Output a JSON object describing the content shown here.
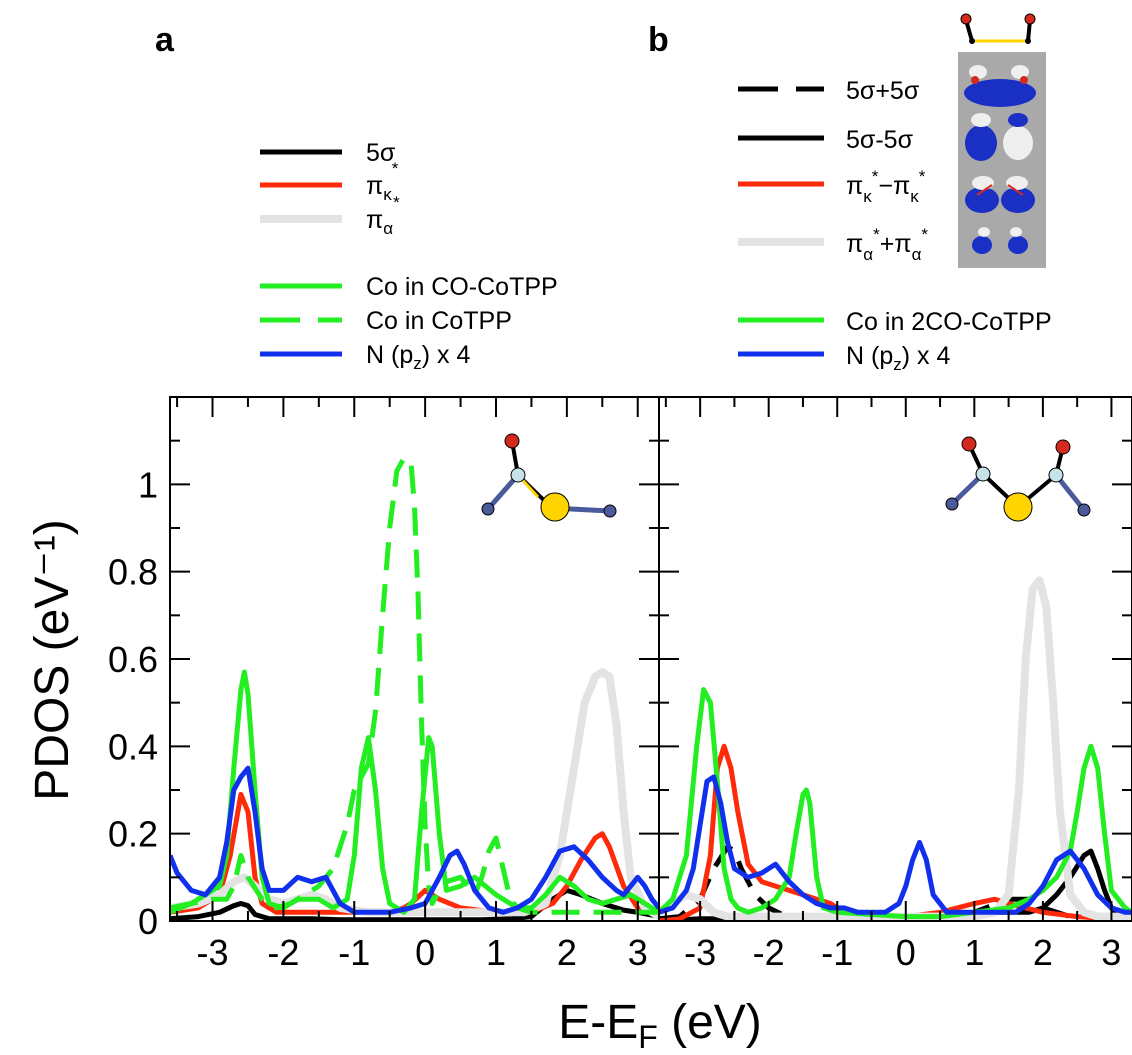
{
  "figure": {
    "ylabel": "PDOS (eV⁻¹)",
    "xlabel": "E-E_F (eV)"
  },
  "chart_data": [
    {
      "type": "line",
      "panel": "a",
      "ylabel": "PDOS (eV⁻¹)",
      "xlabel": "E-E_F (eV)",
      "xlim": [
        -3.6,
        3.3
      ],
      "ylim": [
        0,
        1.2
      ],
      "xticks": [
        -3,
        -2,
        -1,
        0,
        1,
        2,
        3
      ],
      "yticks": [
        0,
        0.2,
        0.4,
        0.6,
        0.8,
        1
      ],
      "series": [
        {
          "name": "5σ",
          "color": "#000000",
          "dash": "solid",
          "width": 5,
          "x": [
            -3.6,
            -3.2,
            -2.9,
            -2.7,
            -2.6,
            -2.5,
            -2.4,
            -2.2,
            -2.0,
            -1.6,
            -1.2,
            -0.8,
            -0.4,
            0.0,
            0.4,
            0.8,
            1.2,
            1.5,
            1.8,
            2.0,
            2.2,
            2.5,
            2.8,
            3.0,
            3.3
          ],
          "y": [
            0.005,
            0.01,
            0.02,
            0.035,
            0.04,
            0.035,
            0.015,
            0.005,
            0.005,
            0.005,
            0.003,
            0.003,
            0.003,
            0.003,
            0.003,
            0.003,
            0.005,
            0.01,
            0.05,
            0.07,
            0.06,
            0.04,
            0.025,
            0.02,
            0.01
          ]
        },
        {
          "name": "πκ*",
          "color": "#ff2a0a",
          "dash": "solid",
          "width": 5,
          "x": [
            -3.6,
            -3.2,
            -2.9,
            -2.75,
            -2.6,
            -2.5,
            -2.4,
            -2.3,
            -2.1,
            -1.9,
            -1.5,
            -1.0,
            -0.5,
            -0.3,
            -0.2,
            0.0,
            0.2,
            0.5,
            1.0,
            1.5,
            1.8,
            2.0,
            2.2,
            2.4,
            2.5,
            2.6,
            2.8,
            3.0,
            3.3
          ],
          "y": [
            0.02,
            0.03,
            0.06,
            0.15,
            0.29,
            0.25,
            0.1,
            0.04,
            0.02,
            0.02,
            0.02,
            0.02,
            0.02,
            0.03,
            0.04,
            0.07,
            0.05,
            0.03,
            0.02,
            0.02,
            0.04,
            0.08,
            0.14,
            0.19,
            0.2,
            0.17,
            0.08,
            0.03,
            0.01
          ]
        },
        {
          "name": "πα*",
          "color": "#e3e3e3",
          "dash": "solid",
          "width": 8,
          "x": [
            -3.6,
            -3.2,
            -2.9,
            -2.7,
            -2.55,
            -2.4,
            -2.2,
            -2.0,
            -1.8,
            -1.6,
            -1.4,
            -1.2,
            -1.0,
            -0.8,
            -0.6,
            -0.4,
            -0.2,
            0.0,
            0.3,
            0.6,
            1.0,
            1.4,
            1.7,
            1.9,
            2.1,
            2.25,
            2.4,
            2.5,
            2.6,
            2.7,
            2.8,
            2.9,
            3.1,
            3.3
          ],
          "y": [
            0.03,
            0.04,
            0.06,
            0.09,
            0.1,
            0.08,
            0.05,
            0.04,
            0.05,
            0.06,
            0.05,
            0.03,
            0.025,
            0.02,
            0.02,
            0.02,
            0.02,
            0.02,
            0.02,
            0.02,
            0.02,
            0.02,
            0.04,
            0.15,
            0.35,
            0.5,
            0.56,
            0.57,
            0.56,
            0.45,
            0.25,
            0.1,
            0.03,
            0.01
          ]
        },
        {
          "name": "Co in CO-CoTPP",
          "color": "#22ee22",
          "dash": "solid",
          "width": 5,
          "x": [
            -3.6,
            -3.3,
            -3.1,
            -2.9,
            -2.8,
            -2.7,
            -2.6,
            -2.55,
            -2.5,
            -2.4,
            -2.3,
            -2.2,
            -2.0,
            -1.8,
            -1.5,
            -1.3,
            -1.1,
            -1.0,
            -0.9,
            -0.8,
            -0.7,
            -0.6,
            -0.5,
            -0.3,
            -0.15,
            -0.05,
            0.05,
            0.1,
            0.2,
            0.3,
            0.5,
            0.7,
            1.0,
            1.3,
            1.5,
            1.7,
            1.9,
            2.1,
            2.3,
            2.5,
            2.7,
            2.9,
            3.1,
            3.3
          ],
          "y": [
            0.02,
            0.04,
            0.06,
            0.08,
            0.15,
            0.35,
            0.53,
            0.57,
            0.52,
            0.3,
            0.1,
            0.04,
            0.03,
            0.05,
            0.05,
            0.03,
            0.05,
            0.15,
            0.35,
            0.42,
            0.3,
            0.12,
            0.04,
            0.02,
            0.05,
            0.25,
            0.42,
            0.4,
            0.2,
            0.07,
            0.08,
            0.1,
            0.06,
            0.03,
            0.03,
            0.06,
            0.1,
            0.08,
            0.05,
            0.04,
            0.05,
            0.06,
            0.04,
            0.02
          ]
        },
        {
          "name": "Co in CoTPP",
          "color": "#22ee22",
          "dash": "dash",
          "width": 5,
          "x": [
            -3.6,
            -3.3,
            -3.0,
            -2.8,
            -2.7,
            -2.6,
            -2.5,
            -2.3,
            -2.1,
            -1.9,
            -1.7,
            -1.5,
            -1.3,
            -1.1,
            -1.0,
            -0.9,
            -0.8,
            -0.7,
            -0.6,
            -0.5,
            -0.4,
            -0.3,
            -0.2,
            -0.15,
            -0.1,
            -0.05,
            0.0,
            0.05,
            0.1,
            0.2,
            0.3,
            0.5,
            0.7,
            0.8,
            0.9,
            1.0,
            1.1,
            1.2,
            1.3,
            1.5,
            1.8,
            2.2,
            2.6,
            3.0,
            3.3
          ],
          "y": [
            0.03,
            0.04,
            0.05,
            0.05,
            0.08,
            0.15,
            0.1,
            0.05,
            0.03,
            0.04,
            0.06,
            0.08,
            0.12,
            0.22,
            0.3,
            0.33,
            0.36,
            0.48,
            0.7,
            0.9,
            1.03,
            1.06,
            1.05,
            0.95,
            0.75,
            0.45,
            0.22,
            0.08,
            0.04,
            0.07,
            0.09,
            0.1,
            0.06,
            0.1,
            0.16,
            0.19,
            0.12,
            0.05,
            0.03,
            0.02,
            0.02,
            0.02,
            0.02,
            0.02,
            0.02
          ]
        },
        {
          "name": "N (p_z) x 4",
          "color": "#1030ee",
          "dash": "solid",
          "width": 5,
          "x": [
            -3.6,
            -3.5,
            -3.3,
            -3.1,
            -2.9,
            -2.8,
            -2.7,
            -2.6,
            -2.5,
            -2.4,
            -2.3,
            -2.2,
            -2.0,
            -1.8,
            -1.6,
            -1.4,
            -1.2,
            -1.0,
            -0.8,
            -0.5,
            -0.2,
            0.0,
            0.2,
            0.35,
            0.45,
            0.55,
            0.7,
            0.9,
            1.1,
            1.3,
            1.5,
            1.7,
            1.9,
            2.1,
            2.3,
            2.5,
            2.7,
            2.8,
            2.9,
            3.0,
            3.1,
            3.2,
            3.3
          ],
          "y": [
            0.15,
            0.11,
            0.07,
            0.06,
            0.1,
            0.18,
            0.3,
            0.33,
            0.35,
            0.25,
            0.12,
            0.07,
            0.07,
            0.1,
            0.09,
            0.1,
            0.04,
            0.02,
            0.02,
            0.02,
            0.03,
            0.04,
            0.1,
            0.15,
            0.16,
            0.13,
            0.07,
            0.03,
            0.02,
            0.03,
            0.05,
            0.1,
            0.16,
            0.17,
            0.14,
            0.1,
            0.07,
            0.06,
            0.08,
            0.1,
            0.08,
            0.05,
            0.03
          ]
        }
      ]
    },
    {
      "type": "line",
      "panel": "b",
      "xlabel": "E-E_F (eV)",
      "xlim": [
        -3.6,
        3.3
      ],
      "ylim": [
        0,
        1.2
      ],
      "xticks": [
        -3,
        -2,
        -1,
        0,
        1,
        2,
        3
      ],
      "yticks": [
        0,
        0.2,
        0.4,
        0.6,
        0.8,
        1
      ],
      "series": [
        {
          "name": "5σ+5σ",
          "color": "#000000",
          "dash": "dash",
          "width": 5,
          "x": [
            -3.6,
            -3.3,
            -3.0,
            -2.8,
            -2.6,
            -2.5,
            -2.4,
            -2.2,
            -2.0,
            -1.8,
            -1.5,
            -1.2,
            -1.0,
            -0.5,
            0.0,
            0.5,
            1.0,
            1.5,
            1.8,
            2.0,
            2.2,
            2.4,
            2.6,
            2.8,
            3.0,
            3.3
          ],
          "y": [
            0.005,
            0.01,
            0.05,
            0.12,
            0.17,
            0.16,
            0.12,
            0.06,
            0.03,
            0.015,
            0.01,
            0.01,
            0.01,
            0.01,
            0.01,
            0.01,
            0.02,
            0.05,
            0.05,
            0.03,
            0.02,
            0.01,
            0.015,
            0.01,
            0.01,
            0.005
          ]
        },
        {
          "name": "5σ-5σ",
          "color": "#000000",
          "dash": "solid",
          "width": 5,
          "x": [
            -3.6,
            -3.0,
            -2.5,
            -2.0,
            -1.5,
            -1.0,
            -0.5,
            0.0,
            0.5,
            1.0,
            1.5,
            1.8,
            2.0,
            2.2,
            2.4,
            2.6,
            2.7,
            2.8,
            2.9,
            3.0,
            3.1,
            3.3
          ],
          "y": [
            0.0,
            0.005,
            0.005,
            0.005,
            0.005,
            0.005,
            0.005,
            0.005,
            0.01,
            0.02,
            0.02,
            0.02,
            0.03,
            0.06,
            0.1,
            0.15,
            0.16,
            0.12,
            0.07,
            0.03,
            0.01,
            0.0
          ]
        },
        {
          "name": "πκ*−πκ*",
          "color": "#ff2a0a",
          "dash": "solid",
          "width": 5,
          "x": [
            -3.6,
            -3.3,
            -3.0,
            -2.85,
            -2.75,
            -2.65,
            -2.55,
            -2.45,
            -2.3,
            -2.1,
            -1.9,
            -1.7,
            -1.5,
            -1.3,
            -1.1,
            -0.9,
            -0.5,
            0.0,
            0.5,
            1.0,
            1.3,
            1.5,
            2.0,
            2.5,
            3.0,
            3.3
          ],
          "y": [
            0.0,
            0.005,
            0.03,
            0.15,
            0.35,
            0.4,
            0.35,
            0.25,
            0.13,
            0.09,
            0.08,
            0.07,
            0.06,
            0.05,
            0.04,
            0.02,
            0.01,
            0.01,
            0.02,
            0.04,
            0.05,
            0.04,
            0.02,
            0.01,
            0.005,
            0.0
          ]
        },
        {
          "name": "πα*+πα*",
          "color": "#e3e3e3",
          "dash": "solid",
          "width": 8,
          "x": [
            -3.6,
            -3.4,
            -3.2,
            -3.0,
            -2.8,
            -2.6,
            -2.4,
            -2.0,
            -1.5,
            -1.0,
            -0.5,
            0.0,
            0.5,
            1.0,
            1.3,
            1.5,
            1.65,
            1.75,
            1.85,
            1.95,
            2.05,
            2.15,
            2.25,
            2.4,
            2.6,
            2.8,
            3.0,
            3.3
          ],
          "y": [
            0.02,
            0.04,
            0.06,
            0.05,
            0.02,
            0.01,
            0.01,
            0.01,
            0.01,
            0.01,
            0.01,
            0.01,
            0.01,
            0.01,
            0.02,
            0.06,
            0.3,
            0.6,
            0.76,
            0.78,
            0.72,
            0.5,
            0.25,
            0.06,
            0.02,
            0.01,
            0.01,
            0.01
          ]
        },
        {
          "name": "Co in 2CO-CoTPP",
          "color": "#22ee22",
          "dash": "solid",
          "width": 5,
          "x": [
            -3.6,
            -3.4,
            -3.2,
            -3.05,
            -2.95,
            -2.85,
            -2.75,
            -2.65,
            -2.55,
            -2.45,
            -2.3,
            -2.1,
            -1.9,
            -1.7,
            -1.6,
            -1.5,
            -1.45,
            -1.4,
            -1.3,
            -1.2,
            -1.0,
            -0.5,
            0.0,
            0.5,
            1.0,
            1.5,
            1.8,
            2.0,
            2.2,
            2.4,
            2.5,
            2.6,
            2.7,
            2.8,
            2.9,
            3.0,
            3.2,
            3.3
          ],
          "y": [
            0.02,
            0.05,
            0.15,
            0.4,
            0.53,
            0.5,
            0.32,
            0.12,
            0.05,
            0.03,
            0.02,
            0.03,
            0.05,
            0.1,
            0.2,
            0.29,
            0.3,
            0.27,
            0.1,
            0.03,
            0.02,
            0.015,
            0.01,
            0.01,
            0.02,
            0.03,
            0.05,
            0.07,
            0.1,
            0.16,
            0.25,
            0.35,
            0.4,
            0.35,
            0.2,
            0.07,
            0.03,
            0.02
          ]
        },
        {
          "name": "N (p_z) x 4",
          "color": "#1030ee",
          "dash": "solid",
          "width": 5,
          "x": [
            -3.6,
            -3.4,
            -3.2,
            -3.1,
            -3.0,
            -2.9,
            -2.8,
            -2.7,
            -2.6,
            -2.5,
            -2.3,
            -2.1,
            -1.9,
            -1.7,
            -1.5,
            -1.3,
            -1.1,
            -0.9,
            -0.7,
            -0.5,
            -0.3,
            -0.1,
            0.0,
            0.1,
            0.2,
            0.3,
            0.4,
            0.6,
            0.8,
            1.0,
            1.2,
            1.4,
            1.6,
            1.8,
            2.0,
            2.2,
            2.4,
            2.6,
            2.8,
            3.0,
            3.2,
            3.3
          ],
          "y": [
            0.02,
            0.03,
            0.07,
            0.12,
            0.22,
            0.32,
            0.33,
            0.27,
            0.18,
            0.12,
            0.1,
            0.11,
            0.13,
            0.09,
            0.06,
            0.04,
            0.03,
            0.03,
            0.02,
            0.02,
            0.02,
            0.04,
            0.08,
            0.14,
            0.18,
            0.14,
            0.06,
            0.02,
            0.02,
            0.02,
            0.02,
            0.02,
            0.02,
            0.04,
            0.08,
            0.14,
            0.16,
            0.12,
            0.06,
            0.03,
            0.02,
            0.02
          ]
        }
      ]
    }
  ],
  "legend_a": {
    "items": [
      {
        "base": "5σ",
        "sub": "",
        "sup": "",
        "tail": "",
        "color": "#000000",
        "dash": "solid",
        "width": 5
      },
      {
        "base": "π",
        "sub": "κ",
        "sup": "*",
        "tail": "",
        "color": "#ff2a0a",
        "dash": "solid",
        "width": 5
      },
      {
        "base": "π",
        "sub": "α",
        "sup": "*",
        "tail": "",
        "color": "#e3e3e3",
        "dash": "solid",
        "width": 8
      },
      {
        "base": "Co in CO-CoTPP",
        "sub": "",
        "sup": "",
        "tail": "",
        "color": "#22ee22",
        "dash": "solid",
        "width": 5
      },
      {
        "base": "Co in CoTPP",
        "sub": "",
        "sup": "",
        "tail": "",
        "color": "#22ee22",
        "dash": "dash",
        "width": 5
      },
      {
        "base": "N (p",
        "sub": "z",
        "sup": "",
        "tail": ") x 4",
        "color": "#1030ee",
        "dash": "solid",
        "width": 5
      }
    ]
  },
  "legend_b": {
    "items": [
      {
        "parts": [
          "5σ+5σ"
        ],
        "color": "#000000",
        "dash": "dash",
        "width": 5
      },
      {
        "parts": [
          "5σ-5σ"
        ],
        "color": "#000000",
        "dash": "solid",
        "width": 5
      },
      {
        "parts": [
          "π",
          "κ",
          "*",
          "−π",
          "κ",
          "*"
        ],
        "color": "#ff2a0a",
        "dash": "solid",
        "width": 5
      },
      {
        "parts": [
          "π",
          "α",
          "*",
          "+π",
          "α",
          "*"
        ],
        "color": "#e3e3e3",
        "dash": "solid",
        "width": 8
      },
      {
        "parts": [
          "Co in 2CO-CoTPP"
        ],
        "color": "#22ee22",
        "dash": "solid",
        "width": 5
      },
      {
        "parts": [
          "N (p",
          "z",
          ") x 4"
        ],
        "color": "#1030ee",
        "dash": "solid",
        "width": 5
      }
    ]
  },
  "panels": {
    "a_label": "a",
    "b_label": "b"
  },
  "colors": {
    "atom_oxygen": "#d42a1e",
    "atom_carbon": "#c7e2e8",
    "atom_nitrogen": "#4a5a9a",
    "atom_cobalt": "#ffd400",
    "orbital_blue": "#1a2fc4",
    "orbital_white": "#efefef",
    "orbital_panel_bg": "#a9a9a9"
  }
}
